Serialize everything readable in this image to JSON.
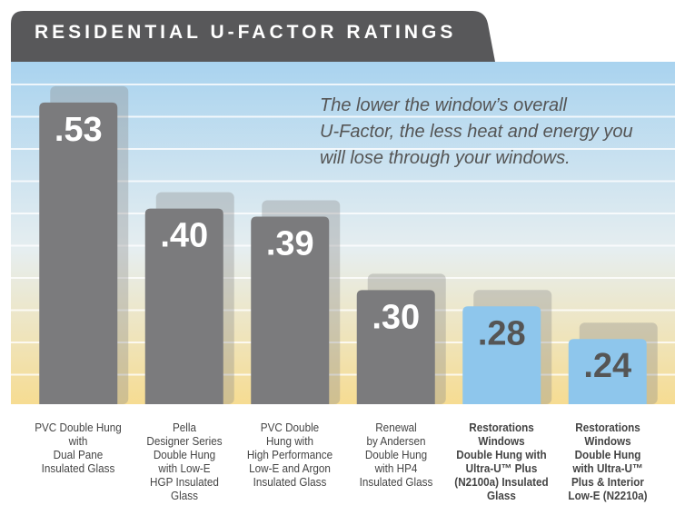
{
  "chart_data": {
    "type": "bar",
    "title": "RESIDENTIAL U-FACTOR RATINGS",
    "annotation": "The lower the window’s overall\nU-Factor, the less heat and energy you\nwill lose through your windows.",
    "categories": [
      "PVC Double Hung\nwith\nDual Pane\nInsulated Glass",
      "Pella\nDesigner Series\nDouble Hung\nwith Low-E\nHGP Insulated\nGlass",
      "PVC Double\nHung with\nHigh Performance\nLow-E and Argon\nInsulated Glass",
      "Renewal\nby Andersen\nDouble Hung\nwith HP4\nInsulated Glass",
      "Restorations\nWindows\nDouble Hung with\nUltra-U™ Plus\n(N2100a) Insulated\nGlass",
      "Restorations\nWindows\nDouble Hung\nwith Ultra-U™\nPlus & Interior\nLow-E (N2210a)"
    ],
    "values": [
      0.53,
      0.4,
      0.39,
      0.3,
      0.28,
      0.24
    ],
    "value_labels": [
      ".53",
      ".40",
      ".39",
      ".30",
      ".28",
      ".24"
    ],
    "colors": [
      "#7b7b7d",
      "#7b7b7d",
      "#7b7b7d",
      "#7b7b7d",
      "#8ec6ec",
      "#8ec6ec"
    ],
    "ylim": [
      0.16,
      0.58
    ]
  }
}
